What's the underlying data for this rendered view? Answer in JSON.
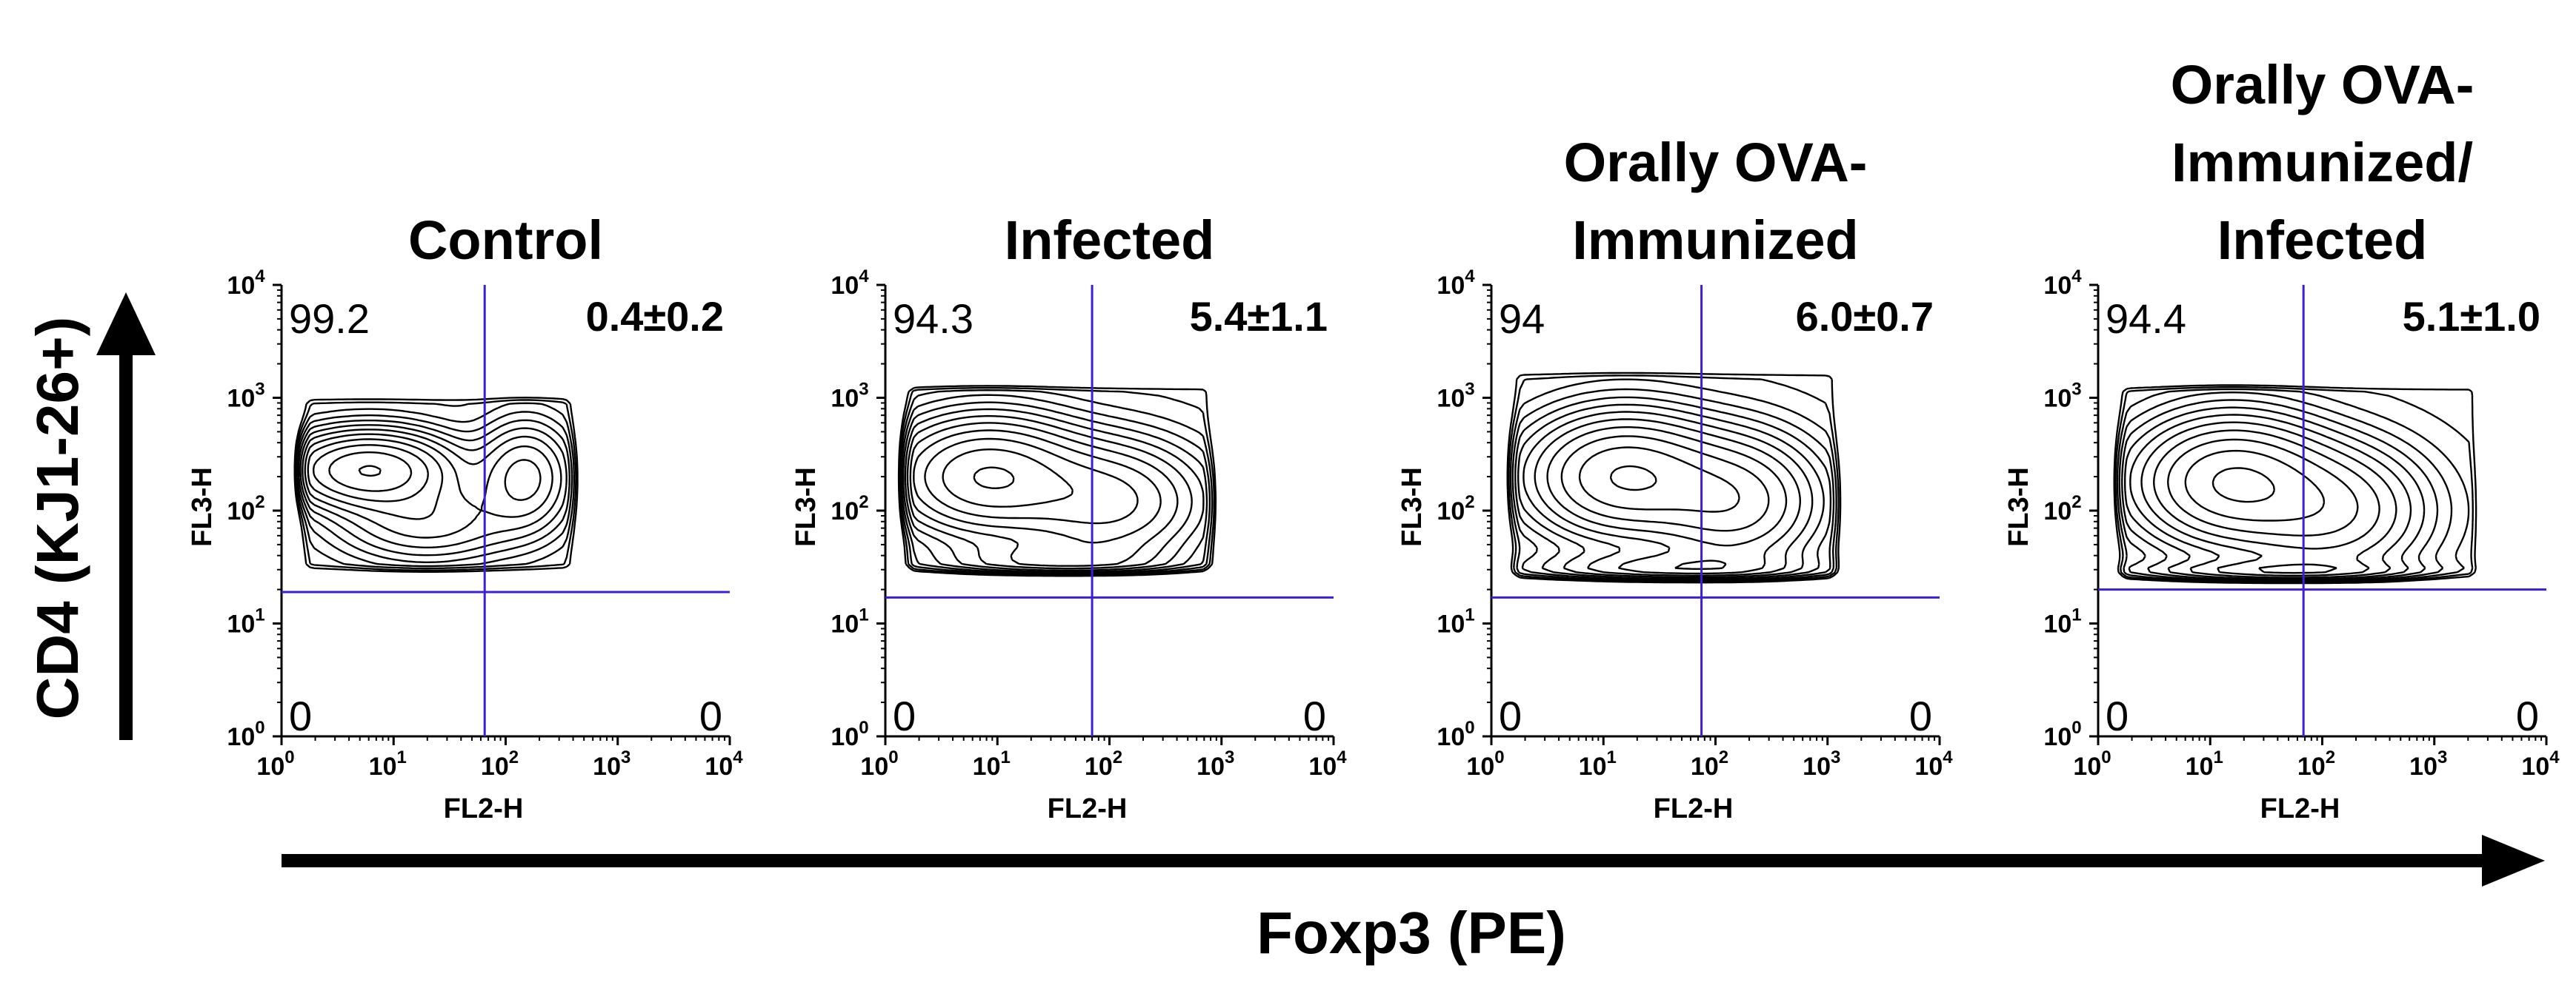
{
  "figure": {
    "y_main_label": "CD4 (KJ1-26+)",
    "x_main_label": "Foxp3 (PE)"
  },
  "chart_data": [
    {
      "type": "contour",
      "title_lines": [
        "Control"
      ],
      "xlabel": "FL2-H",
      "ylabel": "FL3-H",
      "xscale": "log",
      "yscale": "log",
      "xlim": [
        1,
        10000
      ],
      "ylim": [
        1,
        10000
      ],
      "x_ticks": [
        "10",
        "10",
        "10",
        "10",
        "10"
      ],
      "x_tick_exponents": [
        "0",
        "1",
        "2",
        "3",
        "4"
      ],
      "y_ticks": [
        "10",
        "10",
        "10",
        "10",
        "10"
      ],
      "y_tick_exponents": [
        "0",
        "1",
        "2",
        "3",
        "4"
      ],
      "gate": {
        "x": 65,
        "y": 19
      },
      "quadrants": {
        "upper_left": "99.2",
        "upper_right": "0.4±0.2",
        "lower_left": "0",
        "lower_right": "0"
      },
      "peaks": [
        {
          "x": 6,
          "y": 230,
          "sx": 0.45,
          "sy": 0.2,
          "w": 1.0
        },
        {
          "x": 150,
          "y": 200,
          "sx": 0.25,
          "sy": 0.28,
          "w": 0.45
        },
        {
          "x": 20,
          "y": 80,
          "sx": 0.5,
          "sy": 0.22,
          "w": 0.35
        }
      ],
      "bounds": {
        "x0": 1.25,
        "x1": 500,
        "y0": 25,
        "y1": 1200
      }
    },
    {
      "type": "contour",
      "title_lines": [
        "Infected"
      ],
      "xlabel": "FL2-H",
      "ylabel": "FL3-H",
      "xscale": "log",
      "yscale": "log",
      "xlim": [
        1,
        10000
      ],
      "ylim": [
        1,
        10000
      ],
      "x_ticks": [
        "10",
        "10",
        "10",
        "10",
        "10"
      ],
      "x_tick_exponents": [
        "0",
        "1",
        "2",
        "3",
        "4"
      ],
      "y_ticks": [
        "10",
        "10",
        "10",
        "10",
        "10"
      ],
      "y_tick_exponents": [
        "0",
        "1",
        "2",
        "3",
        "4"
      ],
      "gate": {
        "x": 70,
        "y": 17
      },
      "quadrants": {
        "upper_left": "94.3",
        "upper_right": "5.4±1.1",
        "lower_left": "0",
        "lower_right": "0"
      },
      "peaks": [
        {
          "x": 8,
          "y": 200,
          "sx": 0.5,
          "sy": 0.3,
          "w": 1.0
        },
        {
          "x": 100,
          "y": 120,
          "sx": 0.5,
          "sy": 0.32,
          "w": 0.6
        },
        {
          "x": 30,
          "y": 35,
          "sx": 0.6,
          "sy": 0.12,
          "w": 0.25
        }
      ],
      "bounds": {
        "x0": 1.25,
        "x1": 1000,
        "y0": 25,
        "y1": 1500
      }
    },
    {
      "type": "contour",
      "title_lines": [
        "Orally OVA-",
        "Immunized"
      ],
      "xlabel": "FL2-H",
      "ylabel": "FL3-H",
      "xscale": "log",
      "yscale": "log",
      "xlim": [
        1,
        10000
      ],
      "ylim": [
        1,
        10000
      ],
      "x_ticks": [
        "10",
        "10",
        "10",
        "10",
        "10"
      ],
      "x_tick_exponents": [
        "0",
        "1",
        "2",
        "3",
        "4"
      ],
      "y_ticks": [
        "10",
        "10",
        "10",
        "10",
        "10"
      ],
      "y_tick_exponents": [
        "0",
        "1",
        "2",
        "3",
        "4"
      ],
      "gate": {
        "x": 75,
        "y": 17
      },
      "quadrants": {
        "upper_left": "94",
        "upper_right": "6.0±0.7",
        "lower_left": "0",
        "lower_right": "0"
      },
      "peaks": [
        {
          "x": 15,
          "y": 200,
          "sx": 0.5,
          "sy": 0.32,
          "w": 1.0
        },
        {
          "x": 150,
          "y": 120,
          "sx": 0.45,
          "sy": 0.35,
          "w": 0.65
        },
        {
          "x": 40,
          "y": 30,
          "sx": 0.7,
          "sy": 0.1,
          "w": 0.3
        }
      ],
      "bounds": {
        "x0": 1.25,
        "x1": 1500,
        "y0": 22,
        "y1": 2000
      }
    },
    {
      "type": "contour",
      "title_lines": [
        "Orally OVA-",
        "Immunized/",
        "Infected"
      ],
      "xlabel": "FL2-H",
      "ylabel": "FL3-H",
      "xscale": "log",
      "yscale": "log",
      "xlim": [
        1,
        10000
      ],
      "ylim": [
        1,
        10000
      ],
      "x_ticks": [
        "10",
        "10",
        "10",
        "10",
        "10"
      ],
      "x_tick_exponents": [
        "0",
        "1",
        "2",
        "3",
        "4"
      ],
      "y_ticks": [
        "10",
        "10",
        "10",
        "10",
        "10"
      ],
      "y_tick_exponents": [
        "0",
        "1",
        "2",
        "3",
        "4"
      ],
      "gate": {
        "x": 68,
        "y": 20
      },
      "quadrants": {
        "upper_left": "94.4",
        "upper_right": "5.1±1.0",
        "lower_left": "0",
        "lower_right": "0"
      },
      "peaks": [
        {
          "x": 15,
          "y": 180,
          "sx": 0.5,
          "sy": 0.33,
          "w": 1.0
        },
        {
          "x": 120,
          "y": 100,
          "sx": 0.5,
          "sy": 0.35,
          "w": 0.55
        },
        {
          "x": 40,
          "y": 27,
          "sx": 0.7,
          "sy": 0.08,
          "w": 0.35
        }
      ],
      "bounds": {
        "x0": 1.25,
        "x1": 3000,
        "y0": 22,
        "y1": 1500
      }
    }
  ],
  "colors": {
    "contour": "#000000",
    "gate": "#3b1fd6",
    "axis": "#000000"
  }
}
